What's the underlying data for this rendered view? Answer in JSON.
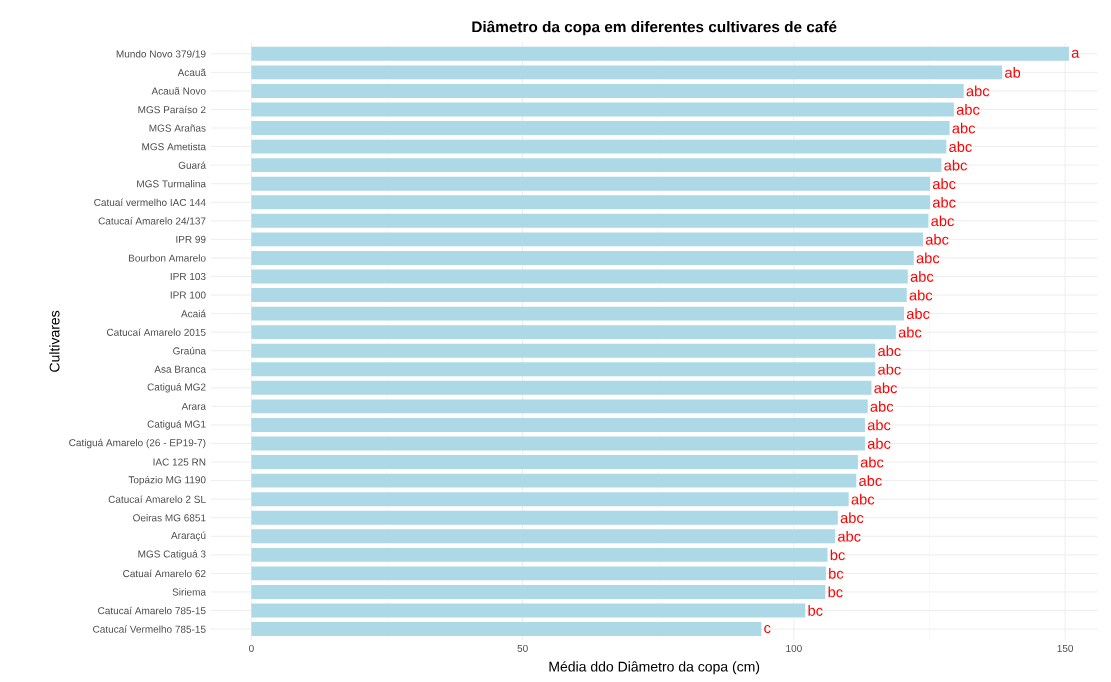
{
  "chart_data": {
    "type": "bar",
    "orientation": "horizontal",
    "title": "Diâmetro da copa em diferentes cultivares de café",
    "xlabel": "Média ddo Diâmetro da copa (cm)",
    "ylabel": "Cultivares",
    "categories": [
      "Mundo Novo 379/19",
      "Acauã",
      "Acauã Novo",
      "MGS Paraíso 2",
      "MGS Arañas",
      "MGS Ametista",
      "Guará",
      "MGS Turmalina",
      "Catuaí vermelho IAC 144",
      "Catucaí Amarelo 24/137",
      "IPR 99",
      "Bourbon Amarelo",
      "IPR 103",
      "IPR 100",
      "Acaiá",
      "Catucaí Amarelo 2015",
      "Graúna",
      "Asa Branca",
      "Catiguá MG2",
      "Arara",
      "Catiguá MG1",
      "Catiguá Amarelo (26 - EP19-7)",
      "IAC 125 RN",
      "Topázio MG 1190",
      "Catucaí Amarelo 2 SL",
      "Oeiras MG 6851",
      "Araraçú",
      "MGS Catiguá 3",
      "Catuaí Amarelo 62",
      "Siriema",
      "Catucaí Amarelo 785-15",
      "Catucaí Vermelho 785-15"
    ],
    "values": [
      150.7,
      138.4,
      131.3,
      129.5,
      128.7,
      128.1,
      127.2,
      125.1,
      125.1,
      124.8,
      123.8,
      122.1,
      121.0,
      120.8,
      120.3,
      118.8,
      115.0,
      115.0,
      114.3,
      113.6,
      113.1,
      113.1,
      111.8,
      111.5,
      110.1,
      108.1,
      107.6,
      106.2,
      105.9,
      105.8,
      102.1,
      94.0
    ],
    "value_labels": [
      "a",
      "ab",
      "abc",
      "abc",
      "abc",
      "abc",
      "abc",
      "abc",
      "abc",
      "abc",
      "abc",
      "abc",
      "abc",
      "abc",
      "abc",
      "abc",
      "abc",
      "abc",
      "abc",
      "abc",
      "abc",
      "abc",
      "abc",
      "abc",
      "abc",
      "abc",
      "abc",
      "bc",
      "bc",
      "bc",
      "bc",
      "c"
    ],
    "color": "#add8e6",
    "xlim": [
      -7.5,
      156
    ],
    "xticks": [
      0,
      50,
      100,
      150
    ],
    "grid": true
  }
}
